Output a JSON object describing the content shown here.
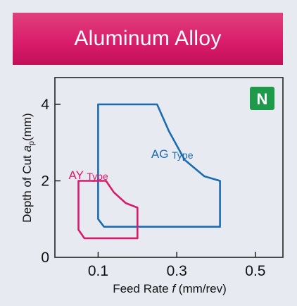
{
  "title": "Aluminum Alloy",
  "badge": "N",
  "chart_data": {
    "type": "area",
    "xlabel": "Feed Rate f (mm/rev)",
    "xlabel_parts": {
      "pre": "Feed Rate ",
      "var": "f",
      "post": " (mm/rev)"
    },
    "ylabel": "Depth of Cut ap(mm)",
    "ylabel_parts": {
      "pre": "Depth of Cut ",
      "var": "a",
      "sub": "p",
      "post": "(mm)"
    },
    "xlim": [
      -0.01,
      0.57
    ],
    "ylim": [
      0,
      4.7
    ],
    "x_ticks": [
      0.1,
      0.3,
      0.5
    ],
    "x_tick_labels": [
      "0.1",
      "0.3",
      "0.5"
    ],
    "y_ticks": [
      0,
      2,
      4
    ],
    "y_tick_labels": [
      "0",
      "2",
      "4"
    ],
    "grid": false,
    "series": [
      {
        "name": "AG Type",
        "label_main": "AG",
        "label_sub": "Type",
        "color": "#1a6bb0",
        "outline": [
          [
            0.1,
            4.0
          ],
          [
            0.25,
            4.0
          ],
          [
            0.28,
            3.3
          ],
          [
            0.32,
            2.55
          ],
          [
            0.37,
            2.12
          ],
          [
            0.41,
            2.0
          ],
          [
            0.41,
            0.8
          ],
          [
            0.115,
            0.8
          ],
          [
            0.1,
            1.0
          ]
        ]
      },
      {
        "name": "AY Type",
        "label_main": "AY",
        "label_sub": "Type",
        "color": "#d81b6a",
        "outline": [
          [
            0.05,
            2.0
          ],
          [
            0.12,
            2.0
          ],
          [
            0.14,
            1.7
          ],
          [
            0.17,
            1.42
          ],
          [
            0.2,
            1.3
          ],
          [
            0.2,
            0.5
          ],
          [
            0.065,
            0.5
          ],
          [
            0.05,
            0.72
          ]
        ]
      }
    ]
  },
  "colors": {
    "banner": "#d81b6a",
    "background": "#e8eaf1",
    "badge": "#1e9a4a"
  }
}
